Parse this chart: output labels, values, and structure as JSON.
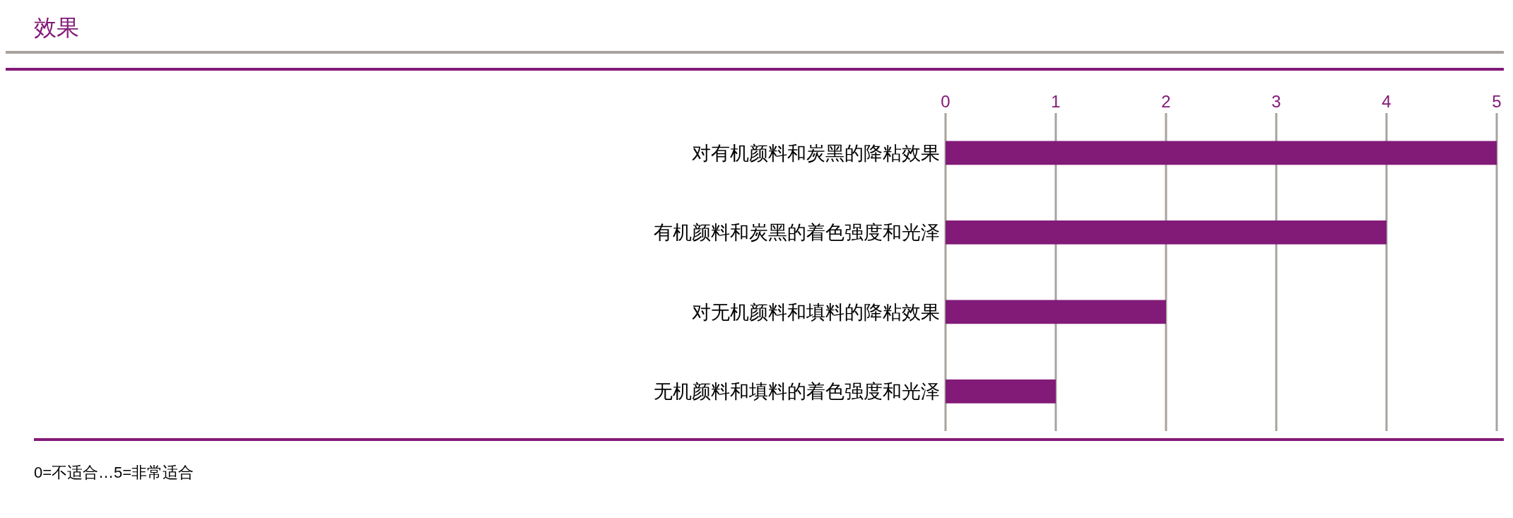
{
  "chart_data": {
    "type": "bar",
    "title": "效果",
    "orientation": "horizontal",
    "categories": [
      "对有机颜料和炭黑的降粘效果",
      "有机颜料和炭黑的着色强度和光泽",
      "对无机颜料和填料的降粘效果",
      "无机颜料和填料的着色强度和光泽"
    ],
    "values": [
      5,
      4,
      2,
      1
    ],
    "color": "#821a78",
    "xlim": [
      0,
      5
    ],
    "xticks": [
      0,
      1,
      2,
      3,
      4,
      5
    ],
    "grid": "x",
    "annotations": [
      "0=不适合…5=非常适合"
    ]
  }
}
